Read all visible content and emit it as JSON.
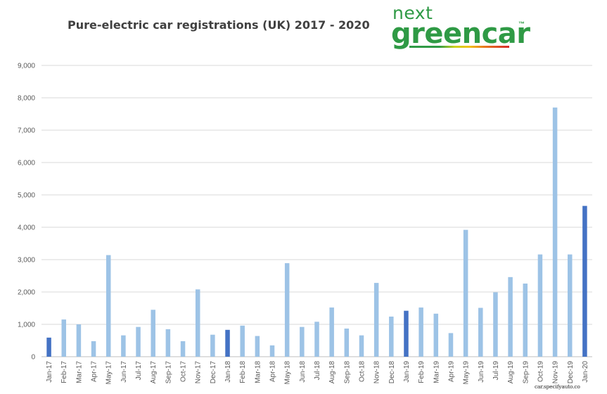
{
  "chart_data": {
    "type": "bar",
    "title": "Pure-electric car registrations (UK) 2017 - 2020",
    "xlabel": "",
    "ylabel": "",
    "ylim": [
      0,
      9000
    ],
    "yticks": [
      "0",
      "1,000",
      "2,000",
      "3,000",
      "4,000",
      "5,000",
      "6,000",
      "7,000",
      "8,000",
      "9,000"
    ],
    "grid": true,
    "categories": [
      "Jan-17",
      "Feb-17",
      "Mar-17",
      "Apr-17",
      "May-17",
      "Jun-17",
      "Jul-17",
      "Aug-17",
      "Sep-17",
      "Oct-17",
      "Nov-17",
      "Dec-17",
      "Jan-18",
      "Feb-18",
      "Mar-18",
      "Apr-18",
      "May-18",
      "Jun-18",
      "Jul-18",
      "Aug-18",
      "Sep-18",
      "Oct-18",
      "Nov-18",
      "Dec-18",
      "Jan-19",
      "Feb-19",
      "Mar-19",
      "Apr-19",
      "May-19",
      "Jun-19",
      "Jul-19",
      "Aug-19",
      "Sep-19",
      "Oct-19",
      "Nov-19",
      "Dec-19",
      "Jan-20"
    ],
    "values": [
      590,
      1150,
      1000,
      480,
      3140,
      660,
      920,
      1450,
      850,
      480,
      2080,
      680,
      830,
      960,
      640,
      350,
      2890,
      920,
      1080,
      1520,
      870,
      660,
      2280,
      1240,
      1420,
      1520,
      1330,
      730,
      3920,
      1510,
      1990,
      2460,
      2260,
      3160,
      7700,
      3160,
      4660
    ],
    "colors": {
      "default": "#9dc3e6",
      "january": "#4472c4",
      "grid": "#d9d9d9",
      "axis": "#bfbfbf"
    }
  },
  "logo": {
    "top": "next",
    "main": "greencar",
    "tm": "™"
  },
  "watermark": "car.specifyauto.co"
}
